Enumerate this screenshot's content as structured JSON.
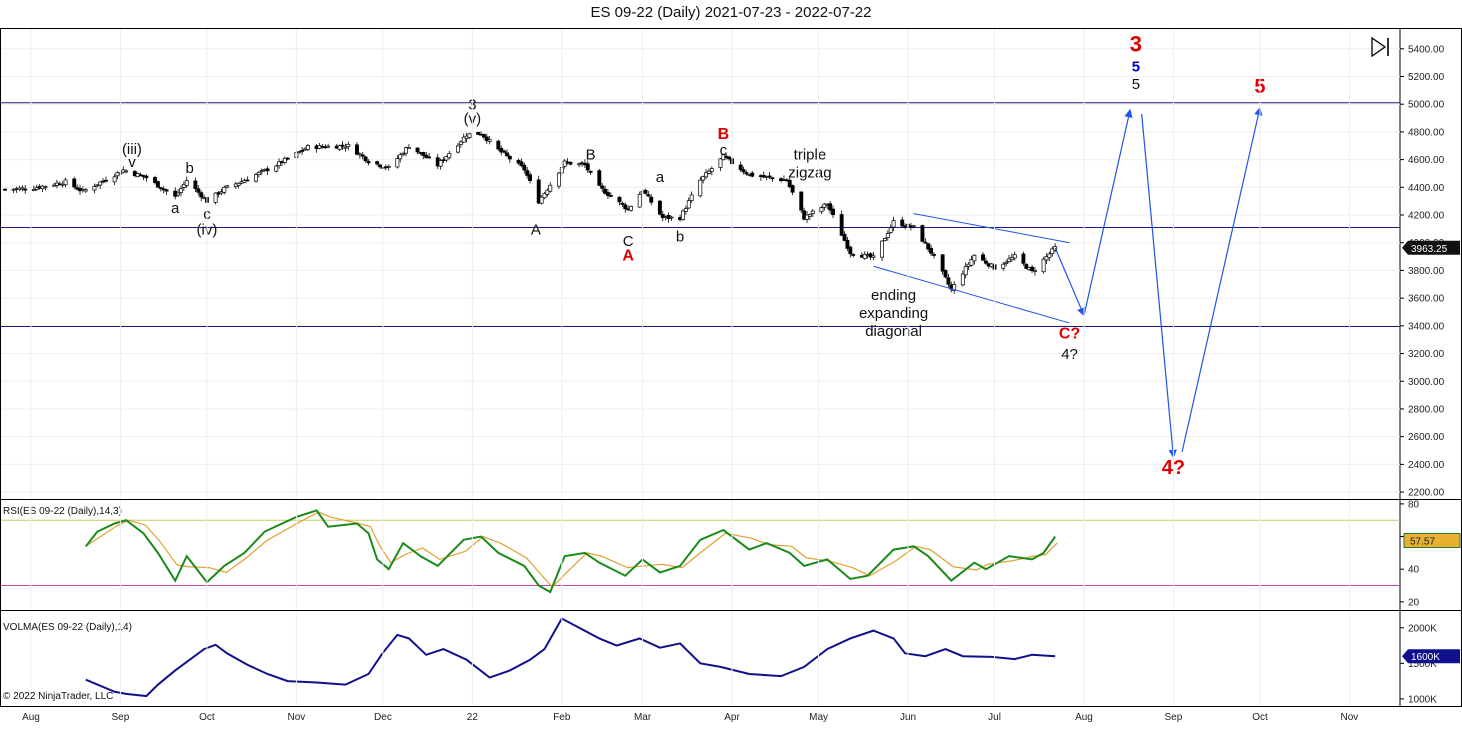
{
  "title": "ES 09-22 (Daily)  2021-07-23 - 2022-07-22",
  "copyright": "© 2022 NinjaTrader, LLC",
  "colors": {
    "up_candle": "#ffffff",
    "down_candle": "#000000",
    "hline": "#1a1a80",
    "arrow": "#1e55e6",
    "label_red": "#e00000",
    "label_blue": "#0000cc",
    "rsi_line": "#1a8a1a",
    "rsi_avg": "#e0a030",
    "rsi_upper": "#c8c864",
    "rsi_lower": "#c040a0",
    "volma_line": "#10108c"
  },
  "chart_data": [
    {
      "type": "candlestick",
      "name": "price",
      "ylim": [
        2150,
        5550
      ],
      "y_ticks": [
        "2200.00",
        "2400.00",
        "2600.00",
        "2800.00",
        "3000.00",
        "3200.00",
        "3400.00",
        "3600.00",
        "3800.00",
        "4000.00",
        "4200.00",
        "4400.00",
        "4600.00",
        "4800.00",
        "5000.00",
        "5200.00",
        "5400.00"
      ],
      "x_ticks": [
        "Aug",
        "Sep",
        "Oct",
        "Nov",
        "Dec",
        "22",
        "Feb",
        "Mar",
        "Apr",
        "May",
        "Jun",
        "Jul",
        "Aug",
        "Sep",
        "Oct",
        "Nov"
      ],
      "last_price": "3963.25",
      "horizontal_lines": [
        5010,
        4110,
        3395
      ],
      "close_path": [
        [
          "2021-07-23",
          4385
        ],
        [
          "2021-08-02",
          4395
        ],
        [
          "2021-08-13",
          4440
        ],
        [
          "2021-08-19",
          4370
        ],
        [
          "2021-08-30",
          4490
        ],
        [
          "2021-09-02",
          4525
        ],
        [
          "2021-09-10",
          4470
        ],
        [
          "2021-09-20",
          4330
        ],
        [
          "2021-09-24",
          4450
        ],
        [
          "2021-10-01",
          4300
        ],
        [
          "2021-10-07",
          4390
        ],
        [
          "2021-10-15",
          4460
        ],
        [
          "2021-10-25",
          4560
        ],
        [
          "2021-11-05",
          4690
        ],
        [
          "2021-11-19",
          4700
        ],
        [
          "2021-11-26",
          4590
        ],
        [
          "2021-11-30",
          4560
        ],
        [
          "2021-12-03",
          4540
        ],
        [
          "2021-12-10",
          4700
        ],
        [
          "2021-12-20",
          4560
        ],
        [
          "2021-12-30",
          4780
        ],
        [
          "2022-01-04",
          4790
        ],
        [
          "2022-01-10",
          4670
        ],
        [
          "2022-01-19",
          4530
        ],
        [
          "2022-01-24",
          4300
        ],
        [
          "2022-01-28",
          4420
        ],
        [
          "2022-02-02",
          4580
        ],
        [
          "2022-02-09",
          4560
        ],
        [
          "2022-02-14",
          4400
        ],
        [
          "2022-02-24",
          4240
        ],
        [
          "2022-03-01",
          4380
        ],
        [
          "2022-03-08",
          4180
        ],
        [
          "2022-03-14",
          4180
        ],
        [
          "2022-03-21",
          4450
        ],
        [
          "2022-03-29",
          4620
        ],
        [
          "2022-04-07",
          4490
        ],
        [
          "2022-04-20",
          4450
        ],
        [
          "2022-04-26",
          4180
        ],
        [
          "2022-05-04",
          4280
        ],
        [
          "2022-05-12",
          3930
        ],
        [
          "2022-05-20",
          3890
        ],
        [
          "2022-05-27",
          4150
        ],
        [
          "2022-06-03",
          4110
        ],
        [
          "2022-06-10",
          3900
        ],
        [
          "2022-06-16",
          3660
        ],
        [
          "2022-06-24",
          3910
        ],
        [
          "2022-07-01",
          3820
        ],
        [
          "2022-07-08",
          3900
        ],
        [
          "2022-07-14",
          3790
        ],
        [
          "2022-07-22",
          3963
        ]
      ],
      "projection": [
        [
          "2022-07-22",
          3963
        ],
        [
          "2022-08-01",
          3475
        ],
        [
          "2022-08-17",
          4960
        ],
        [
          "2022-08-21",
          4930
        ],
        [
          "2022-09-01",
          2450
        ],
        [
          "2022-09-04",
          2490
        ],
        [
          "2022-10-01",
          4975
        ]
      ],
      "diagonal_lines": [
        [
          [
            "2022-05-20",
            3830
          ],
          [
            "2022-07-27",
            3420
          ]
        ],
        [
          [
            "2022-06-03",
            4210
          ],
          [
            "2022-07-27",
            4000
          ]
        ]
      ],
      "wave_labels": [
        {
          "text": "(iii)",
          "x": "2021-09-05",
          "y": 4640,
          "color": "black"
        },
        {
          "text": "v",
          "x": "2021-09-05",
          "y": 4545,
          "color": "black"
        },
        {
          "text": "b",
          "x": "2021-09-25",
          "y": 4505,
          "color": "black"
        },
        {
          "text": "a",
          "x": "2021-09-20",
          "y": 4215,
          "color": "black"
        },
        {
          "text": "c",
          "x": "2021-10-01",
          "y": 4170,
          "color": "black"
        },
        {
          "text": "(iv)",
          "x": "2021-10-01",
          "y": 4060,
          "color": "black"
        },
        {
          "text": "3",
          "x": "2022-01-01",
          "y": 4960,
          "color": "black"
        },
        {
          "text": "(v)",
          "x": "2022-01-01",
          "y": 4860,
          "color": "black"
        },
        {
          "text": "A",
          "x": "2022-01-23",
          "y": 4060,
          "color": "black"
        },
        {
          "text": "B",
          "x": "2022-02-11",
          "y": 4600,
          "color": "black"
        },
        {
          "text": "a",
          "x": "2022-03-07",
          "y": 4440,
          "color": "black"
        },
        {
          "text": "C",
          "x": "2022-02-24",
          "y": 3975,
          "color": "black"
        },
        {
          "text": "A",
          "x": "2022-02-24",
          "y": 3870,
          "color": "red"
        },
        {
          "text": "b",
          "x": "2022-03-14",
          "y": 4010,
          "color": "black"
        },
        {
          "text": "B",
          "x": "2022-03-29",
          "y": 4750,
          "color": "red"
        },
        {
          "text": "c",
          "x": "2022-03-29",
          "y": 4635,
          "color": "black"
        },
        {
          "text": "C?",
          "x": "2022-07-27",
          "y": 3310,
          "color": "red"
        },
        {
          "text": "4?",
          "x": "2022-07-27",
          "y": 3160,
          "color": "black"
        },
        {
          "text": "3",
          "x": "2022-08-19",
          "y": 5380,
          "color": "red"
        },
        {
          "text": "5",
          "x": "2022-08-19",
          "y": 5235,
          "color": "blue"
        },
        {
          "text": "5",
          "x": "2022-08-19",
          "y": 5110,
          "color": "black"
        },
        {
          "text": "5",
          "x": "2022-10-01",
          "y": 5080,
          "color": "red"
        },
        {
          "text": "4?",
          "x": "2022-09-01",
          "y": 2330,
          "color": "red"
        }
      ],
      "annotations": [
        {
          "text": "triple",
          "x": "2022-04-28",
          "y": 4600
        },
        {
          "text": "zigzag",
          "x": "2022-04-28",
          "y": 4470
        },
        {
          "text": "ending",
          "x": "2022-05-27",
          "y": 3585
        },
        {
          "text": "expanding",
          "x": "2022-05-27",
          "y": 3455
        },
        {
          "text": "diagonal",
          "x": "2022-05-27",
          "y": 3325
        }
      ]
    },
    {
      "type": "line",
      "name": "RSI(ES 09-22 (Daily),14,3)",
      "ylim": [
        15,
        83
      ],
      "y_ticks": [
        "20",
        "40",
        "60",
        "80"
      ],
      "upper_band": 70,
      "lower_band": 30,
      "last_value": "57.57",
      "values": [
        [
          "2021-08-20",
          54
        ],
        [
          "2021-08-24",
          63
        ],
        [
          "2021-08-30",
          68
        ],
        [
          "2021-09-03",
          70
        ],
        [
          "2021-09-09",
          62
        ],
        [
          "2021-09-14",
          50
        ],
        [
          "2021-09-20",
          33
        ],
        [
          "2021-09-24",
          48
        ],
        [
          "2021-10-01",
          32
        ],
        [
          "2021-10-07",
          42
        ],
        [
          "2021-10-14",
          50
        ],
        [
          "2021-10-21",
          63
        ],
        [
          "2021-11-01",
          72
        ],
        [
          "2021-11-08",
          76
        ],
        [
          "2021-11-12",
          66
        ],
        [
          "2021-11-22",
          68
        ],
        [
          "2021-11-26",
          62
        ],
        [
          "2021-11-29",
          46
        ],
        [
          "2021-12-03",
          40
        ],
        [
          "2021-12-08",
          56
        ],
        [
          "2021-12-14",
          48
        ],
        [
          "2021-12-20",
          42
        ],
        [
          "2021-12-29",
          58
        ],
        [
          "2022-01-04",
          60
        ],
        [
          "2022-01-10",
          50
        ],
        [
          "2022-01-19",
          42
        ],
        [
          "2022-01-24",
          30
        ],
        [
          "2022-01-28",
          26
        ],
        [
          "2022-02-02",
          48
        ],
        [
          "2022-02-09",
          50
        ],
        [
          "2022-02-14",
          44
        ],
        [
          "2022-02-23",
          36
        ],
        [
          "2022-03-01",
          46
        ],
        [
          "2022-03-07",
          38
        ],
        [
          "2022-03-14",
          42
        ],
        [
          "2022-03-21",
          58
        ],
        [
          "2022-03-29",
          64
        ],
        [
          "2022-04-07",
          52
        ],
        [
          "2022-04-13",
          56
        ],
        [
          "2022-04-21",
          50
        ],
        [
          "2022-04-26",
          42
        ],
        [
          "2022-05-04",
          46
        ],
        [
          "2022-05-12",
          34
        ],
        [
          "2022-05-18",
          36
        ],
        [
          "2022-05-27",
          52
        ],
        [
          "2022-06-03",
          54
        ],
        [
          "2022-06-08",
          48
        ],
        [
          "2022-06-16",
          33
        ],
        [
          "2022-06-24",
          44
        ],
        [
          "2022-06-28",
          40
        ],
        [
          "2022-07-06",
          48
        ],
        [
          "2022-07-14",
          46
        ],
        [
          "2022-07-18",
          50
        ],
        [
          "2022-07-22",
          60
        ]
      ]
    },
    {
      "type": "line",
      "name": "VOLMA(ES 09-22 (Daily),14)",
      "ylim": [
        900,
        2250
      ],
      "y_ticks": [
        "1000K",
        "1500K",
        "2000K"
      ],
      "last_value": "1600K",
      "values": [
        [
          "2021-08-20",
          1270
        ],
        [
          "2021-08-30",
          1100
        ],
        [
          "2021-09-03",
          1070
        ],
        [
          "2021-09-10",
          1040
        ],
        [
          "2021-09-14",
          1200
        ],
        [
          "2021-09-20",
          1400
        ],
        [
          "2021-09-24",
          1520
        ],
        [
          "2021-09-30",
          1700
        ],
        [
          "2021-10-04",
          1760
        ],
        [
          "2021-10-08",
          1640
        ],
        [
          "2021-10-15",
          1480
        ],
        [
          "2021-10-22",
          1350
        ],
        [
          "2021-10-29",
          1250
        ],
        [
          "2021-11-08",
          1230
        ],
        [
          "2021-11-18",
          1200
        ],
        [
          "2021-11-26",
          1350
        ],
        [
          "2021-12-01",
          1650
        ],
        [
          "2021-12-06",
          1900
        ],
        [
          "2021-12-10",
          1850
        ],
        [
          "2021-12-16",
          1620
        ],
        [
          "2021-12-22",
          1700
        ],
        [
          "2021-12-30",
          1550
        ],
        [
          "2022-01-07",
          1300
        ],
        [
          "2022-01-14",
          1400
        ],
        [
          "2022-01-21",
          1550
        ],
        [
          "2022-01-26",
          1700
        ],
        [
          "2022-02-01",
          2130
        ],
        [
          "2022-02-07",
          2000
        ],
        [
          "2022-02-14",
          1850
        ],
        [
          "2022-02-20",
          1750
        ],
        [
          "2022-02-28",
          1850
        ],
        [
          "2022-03-07",
          1720
        ],
        [
          "2022-03-14",
          1780
        ],
        [
          "2022-03-21",
          1500
        ],
        [
          "2022-03-28",
          1450
        ],
        [
          "2022-04-07",
          1350
        ],
        [
          "2022-04-18",
          1320
        ],
        [
          "2022-04-26",
          1450
        ],
        [
          "2022-05-04",
          1700
        ],
        [
          "2022-05-12",
          1850
        ],
        [
          "2022-05-20",
          1960
        ],
        [
          "2022-05-27",
          1850
        ],
        [
          "2022-05-31",
          1640
        ],
        [
          "2022-06-07",
          1600
        ],
        [
          "2022-06-14",
          1700
        ],
        [
          "2022-06-20",
          1600
        ],
        [
          "2022-06-30",
          1590
        ],
        [
          "2022-07-08",
          1560
        ],
        [
          "2022-07-14",
          1620
        ],
        [
          "2022-07-22",
          1600
        ]
      ]
    }
  ]
}
